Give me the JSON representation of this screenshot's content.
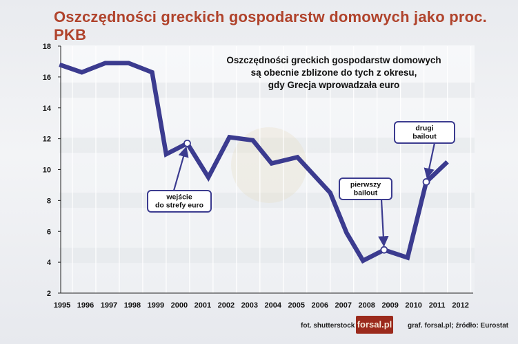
{
  "page_title": "Oszczędności greckich gospodarstw domowych jako proc. PKB",
  "chart_data": {
    "type": "line",
    "title": "Oszczędności greckich gospodarstw domowych jako proc. PKB",
    "xlim": [
      1995,
      2012.6
    ],
    "ylim": [
      2,
      18
    ],
    "y_ticks": [
      2,
      4,
      6,
      8,
      10,
      12,
      14,
      16,
      18
    ],
    "x_tick_labels": [
      {
        "label": "1995",
        "x": 1995
      },
      {
        "label": "1996",
        "x": 1996
      },
      {
        "label": "1997",
        "x": 1997
      },
      {
        "label": "1998",
        "x": 1998
      },
      {
        "label": "1999",
        "x": 1999
      },
      {
        "label": "2000",
        "x": 2000
      },
      {
        "label": "2001",
        "x": 2001
      },
      {
        "label": "2002",
        "x": 2002
      },
      {
        "label": "2003",
        "x": 2003
      },
      {
        "label": "2004",
        "x": 2004
      },
      {
        "label": "2005",
        "x": 2005
      },
      {
        "label": "2006",
        "x": 2006
      },
      {
        "label": "2007",
        "x": 2007
      },
      {
        "label": "2008",
        "x": 2008
      },
      {
        "label": "2009",
        "x": 2009
      },
      {
        "label": "2010",
        "x": 2010
      },
      {
        "label": "2011",
        "x": 2011
      },
      {
        "label": "2012",
        "x": 2012
      }
    ],
    "grid": {
      "vertical": true,
      "horizontal": false
    },
    "series": [
      {
        "color": "#3b3b8f",
        "points": [
          {
            "x": 1994.95,
            "y": 16.8
          },
          {
            "x": 1995.9,
            "y": 16.3
          },
          {
            "x": 1996.9,
            "y": 16.9
          },
          {
            "x": 1997.9,
            "y": 16.9
          },
          {
            "x": 1998.9,
            "y": 16.3
          },
          {
            "x": 1999.5,
            "y": 11.0
          },
          {
            "x": 2000.4,
            "y": 11.7
          },
          {
            "x": 2001.3,
            "y": 9.5
          },
          {
            "x": 2002.2,
            "y": 12.1
          },
          {
            "x": 2003.2,
            "y": 11.9
          },
          {
            "x": 2004.0,
            "y": 10.4
          },
          {
            "x": 2005.1,
            "y": 10.8
          },
          {
            "x": 2006.5,
            "y": 8.5
          },
          {
            "x": 2007.2,
            "y": 5.9
          },
          {
            "x": 2007.9,
            "y": 4.1
          },
          {
            "x": 2008.8,
            "y": 4.8
          },
          {
            "x": 2009.8,
            "y": 4.3
          },
          {
            "x": 2010.6,
            "y": 9.2
          },
          {
            "x": 2011.5,
            "y": 10.5
          }
        ]
      }
    ],
    "markers": [
      {
        "x": 2000.4,
        "y": 11.7
      },
      {
        "x": 2008.8,
        "y": 4.8
      },
      {
        "x": 2010.6,
        "y": 9.2
      }
    ],
    "annotation_lines": [
      "Oszczędności greckich gospodarstw domowych",
      "są obecnie zblizone do tych z okresu,",
      "gdy Grecja wprowadzała euro"
    ],
    "callouts": [
      {
        "lines": [
          "wejście",
          "do strefy euro"
        ],
        "target": {
          "x": 2000.4,
          "y": 11.7
        }
      },
      {
        "lines": [
          "pierwszy",
          "bailout"
        ],
        "target": {
          "x": 2008.8,
          "y": 4.8
        }
      },
      {
        "lines": [
          "drugi",
          "bailout"
        ],
        "target": {
          "x": 2010.6,
          "y": 9.2
        }
      }
    ]
  },
  "footer": {
    "photo_credit": "fot. shutterstock",
    "logo_text": "forsal.pl",
    "source": "graf. forsal.pl;  źródło: Eurostat"
  }
}
